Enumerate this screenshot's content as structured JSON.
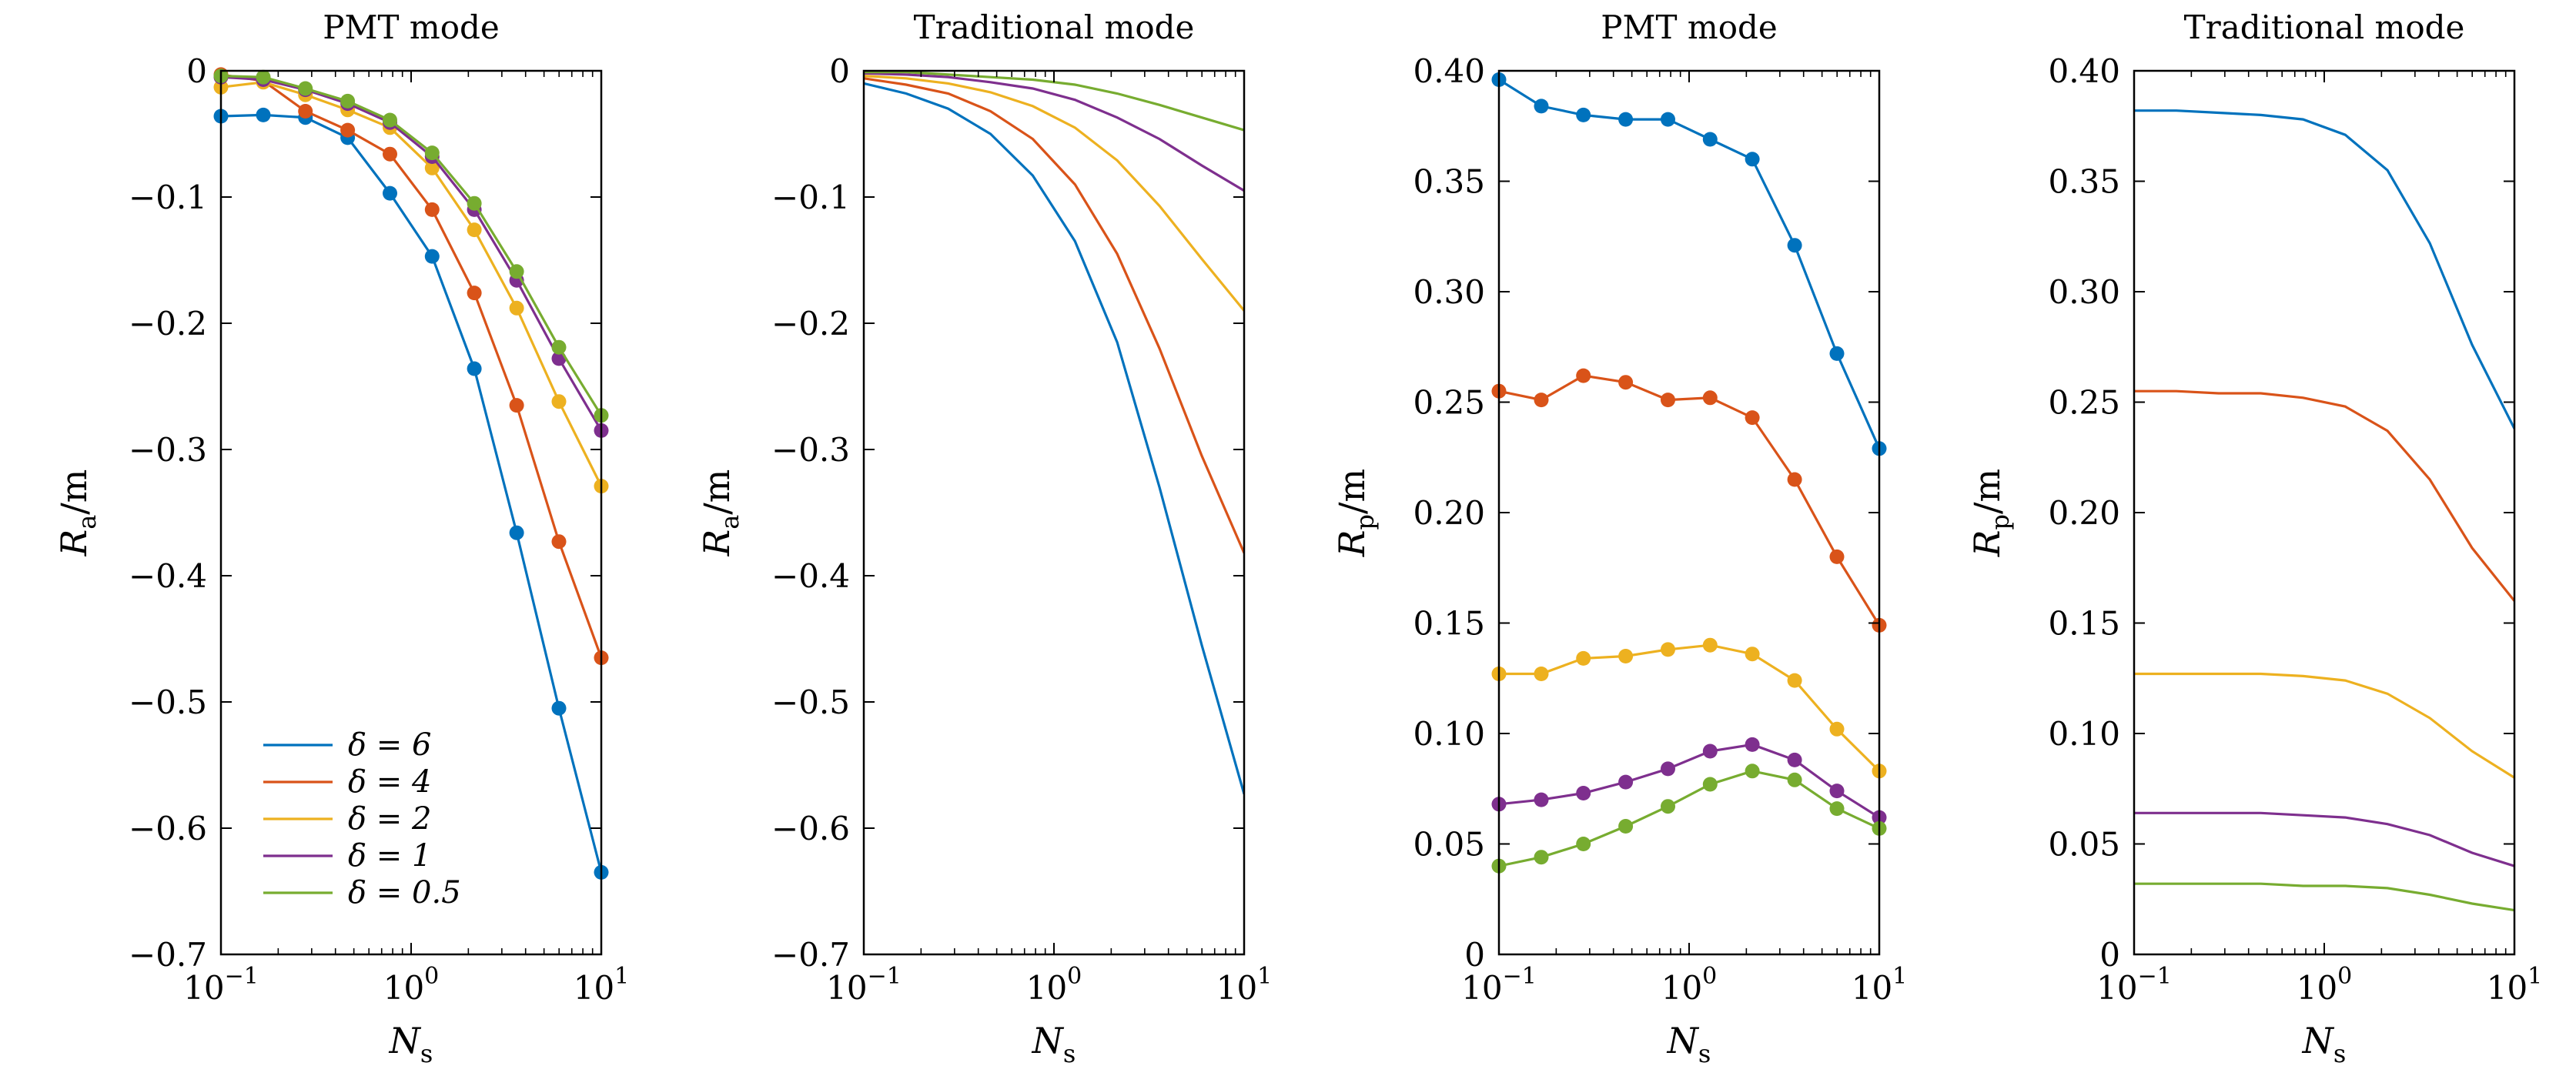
{
  "chart_data": [
    {
      "type": "line",
      "title": "PMT mode",
      "xlabel": "N_s",
      "ylabel": "R_a/m",
      "xscale": "log",
      "xlim": [
        0.1,
        10
      ],
      "ylim": [
        -0.7,
        0
      ],
      "xticks": [
        0.1,
        1,
        10
      ],
      "xtick_labels": [
        "10^-1",
        "10^0",
        "10^1"
      ],
      "yticks": [
        0,
        -0.1,
        -0.2,
        -0.3,
        -0.4,
        -0.5,
        -0.6,
        -0.7
      ],
      "ytick_labels": [
        "0",
        "−0.1",
        "−0.2",
        "−0.3",
        "−0.4",
        "−0.5",
        "−0.6",
        "−0.7"
      ],
      "markers": true,
      "legend": "lower-left",
      "x": [
        0.1,
        0.167,
        0.278,
        0.464,
        0.774,
        1.29,
        2.15,
        3.59,
        5.99,
        10
      ],
      "series": [
        {
          "name": "δ = 6",
          "color": "#0072BD",
          "values": [
            -0.036,
            -0.035,
            -0.037,
            -0.053,
            -0.097,
            -0.147,
            -0.236,
            -0.366,
            -0.505,
            -0.635
          ]
        },
        {
          "name": "δ = 4",
          "color": "#D95319",
          "values": [
            -0.003,
            -0.008,
            -0.032,
            -0.047,
            -0.066,
            -0.11,
            -0.176,
            -0.265,
            -0.373,
            -0.465
          ]
        },
        {
          "name": "δ = 2",
          "color": "#EDB120",
          "values": [
            -0.013,
            -0.009,
            -0.019,
            -0.031,
            -0.045,
            -0.077,
            -0.126,
            -0.188,
            -0.262,
            -0.329
          ]
        },
        {
          "name": "δ = 1",
          "color": "#7E2F8E",
          "values": [
            -0.005,
            -0.007,
            -0.015,
            -0.026,
            -0.041,
            -0.068,
            -0.11,
            -0.166,
            -0.228,
            -0.285
          ]
        },
        {
          "name": "δ = 0.5",
          "color": "#77AC30",
          "values": [
            -0.004,
            -0.005,
            -0.014,
            -0.024,
            -0.039,
            -0.065,
            -0.105,
            -0.159,
            -0.219,
            -0.273
          ]
        }
      ]
    },
    {
      "type": "line",
      "title": "Traditional mode",
      "xlabel": "N_s",
      "ylabel": "R_a/m",
      "xscale": "log",
      "xlim": [
        0.1,
        10
      ],
      "ylim": [
        -0.7,
        0
      ],
      "xticks": [
        0.1,
        1,
        10
      ],
      "xtick_labels": [
        "10^-1",
        "10^0",
        "10^1"
      ],
      "yticks": [
        0,
        -0.1,
        -0.2,
        -0.3,
        -0.4,
        -0.5,
        -0.6,
        -0.7
      ],
      "ytick_labels": [
        "0",
        "−0.1",
        "−0.2",
        "−0.3",
        "−0.4",
        "−0.5",
        "−0.6",
        "−0.7"
      ],
      "markers": false,
      "x": [
        0.1,
        0.167,
        0.278,
        0.464,
        0.774,
        1.29,
        2.15,
        3.59,
        5.99,
        10
      ],
      "series": [
        {
          "color": "#0072BD",
          "values": [
            -0.01,
            -0.018,
            -0.03,
            -0.05,
            -0.083,
            -0.135,
            -0.215,
            -0.33,
            -0.455,
            -0.573
          ]
        },
        {
          "color": "#D95319",
          "values": [
            -0.006,
            -0.011,
            -0.018,
            -0.032,
            -0.054,
            -0.09,
            -0.145,
            -0.22,
            -0.305,
            -0.382
          ]
        },
        {
          "color": "#EDB120",
          "values": [
            -0.004,
            -0.006,
            -0.01,
            -0.017,
            -0.028,
            -0.045,
            -0.071,
            -0.107,
            -0.149,
            -0.19
          ]
        },
        {
          "color": "#7E2F8E",
          "values": [
            -0.002,
            -0.003,
            -0.005,
            -0.009,
            -0.014,
            -0.023,
            -0.037,
            -0.054,
            -0.075,
            -0.095
          ]
        },
        {
          "color": "#77AC30",
          "values": [
            -0.001,
            -0.001,
            -0.003,
            -0.005,
            -0.007,
            -0.011,
            -0.018,
            -0.027,
            -0.037,
            -0.047
          ]
        }
      ]
    },
    {
      "type": "line",
      "title": "PMT mode",
      "xlabel": "N_s",
      "ylabel": "R_p/m",
      "xscale": "log",
      "xlim": [
        0.1,
        10
      ],
      "ylim": [
        0,
        0.4
      ],
      "xticks": [
        0.1,
        1,
        10
      ],
      "xtick_labels": [
        "10^-1",
        "10^0",
        "10^1"
      ],
      "yticks": [
        0,
        0.05,
        0.1,
        0.15,
        0.2,
        0.25,
        0.3,
        0.35,
        0.4
      ],
      "ytick_labels": [
        "0",
        "0.05",
        "0.10",
        "0.15",
        "0.20",
        "0.25",
        "0.30",
        "0.35",
        "0.40"
      ],
      "markers": true,
      "x": [
        0.1,
        0.167,
        0.278,
        0.464,
        0.774,
        1.29,
        2.15,
        3.59,
        5.99,
        10
      ],
      "series": [
        {
          "color": "#0072BD",
          "values": [
            0.396,
            0.384,
            0.38,
            0.378,
            0.378,
            0.369,
            0.36,
            0.321,
            0.272,
            0.229
          ]
        },
        {
          "color": "#D95319",
          "values": [
            0.255,
            0.251,
            0.262,
            0.259,
            0.251,
            0.252,
            0.243,
            0.215,
            0.18,
            0.149
          ]
        },
        {
          "color": "#EDB120",
          "values": [
            0.127,
            0.127,
            0.134,
            0.135,
            0.138,
            0.14,
            0.136,
            0.124,
            0.102,
            0.083
          ]
        },
        {
          "color": "#7E2F8E",
          "values": [
            0.068,
            0.07,
            0.073,
            0.078,
            0.084,
            0.092,
            0.095,
            0.088,
            0.074,
            0.062
          ]
        },
        {
          "color": "#77AC30",
          "values": [
            0.04,
            0.044,
            0.05,
            0.058,
            0.067,
            0.077,
            0.083,
            0.079,
            0.066,
            0.057
          ]
        }
      ]
    },
    {
      "type": "line",
      "title": "Traditional mode",
      "xlabel": "N_s",
      "ylabel": "R_p/m",
      "xscale": "log",
      "xlim": [
        0.1,
        10
      ],
      "ylim": [
        0,
        0.4
      ],
      "xticks": [
        0.1,
        1,
        10
      ],
      "xtick_labels": [
        "10^-1",
        "10^0",
        "10^1"
      ],
      "yticks": [
        0,
        0.05,
        0.1,
        0.15,
        0.2,
        0.25,
        0.3,
        0.35,
        0.4
      ],
      "ytick_labels": [
        "0",
        "0.05",
        "0.10",
        "0.15",
        "0.20",
        "0.25",
        "0.30",
        "0.35",
        "0.40"
      ],
      "markers": false,
      "x": [
        0.1,
        0.167,
        0.278,
        0.464,
        0.774,
        1.29,
        2.15,
        3.59,
        5.99,
        10
      ],
      "series": [
        {
          "color": "#0072BD",
          "values": [
            0.382,
            0.382,
            0.381,
            0.38,
            0.378,
            0.371,
            0.355,
            0.322,
            0.276,
            0.238
          ]
        },
        {
          "color": "#D95319",
          "values": [
            0.255,
            0.255,
            0.254,
            0.254,
            0.252,
            0.248,
            0.237,
            0.215,
            0.184,
            0.16
          ]
        },
        {
          "color": "#EDB120",
          "values": [
            0.127,
            0.127,
            0.127,
            0.127,
            0.126,
            0.124,
            0.118,
            0.107,
            0.092,
            0.08
          ]
        },
        {
          "color": "#7E2F8E",
          "values": [
            0.064,
            0.064,
            0.064,
            0.064,
            0.063,
            0.062,
            0.059,
            0.054,
            0.046,
            0.04
          ]
        },
        {
          "color": "#77AC30",
          "values": [
            0.032,
            0.032,
            0.032,
            0.032,
            0.031,
            0.031,
            0.03,
            0.027,
            0.023,
            0.02
          ]
        }
      ]
    }
  ]
}
